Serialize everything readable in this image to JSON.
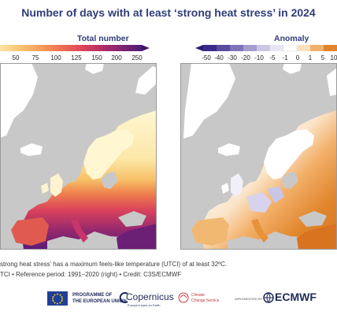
{
  "title": "Number of days with at least ‘strong heat stress’ in 2024",
  "left_panel": {
    "title": "Total number",
    "legend_ticks": [
      "50",
      "75",
      "100",
      "125",
      "150",
      "200",
      "250"
    ]
  },
  "right_panel": {
    "title": "Anomaly",
    "legend_ticks": [
      "-50",
      "-40",
      "-30",
      "-20",
      "-10",
      "-5",
      "-1",
      "0",
      "1",
      "5",
      "10"
    ]
  },
  "caption": {
    "line1": "strong heat stress’ has a maximum feels-like temperature (UTCI) of at least 32ºC.",
    "line2": "TCI • Reference period: 1991–2020 (right) • Credit: C3S/ECMWF"
  },
  "footer": {
    "eu_text_1": "PROGRAMME OF",
    "eu_text_2": "THE EUROPEAN UNION",
    "copernicus": "Copernicus",
    "copernicus_sub": "Europe's eyes on Earth",
    "climate_1": "Climate",
    "climate_2": "Change Service",
    "implemented_by": "IMPLEMENTED BY",
    "ecmwf": "ECMWF"
  },
  "colors": {
    "title": "#2f3d7a",
    "sea": "#c8c8c8",
    "land_zero": "#ffffff",
    "total_low": "#fbe3a3",
    "total_mid": "#e8424f",
    "total_high": "#5a1a78",
    "anom_positive": "#e0852b",
    "anom_negative": "#3a2a8a"
  }
}
